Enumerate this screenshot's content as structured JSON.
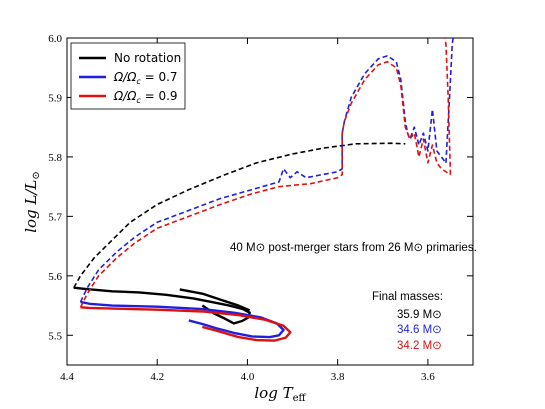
{
  "chart_data": {
    "type": "line",
    "title": "",
    "xlabel": "log T",
    "xlabel_sub": "eff",
    "ylabel": "log L/L",
    "ylabel_sub": "⊙",
    "xlim": [
      4.4,
      3.5
    ],
    "ylim": [
      5.45,
      6.0
    ],
    "x_inverted": true,
    "grid": false,
    "legend_position": "top-left",
    "xticks": [
      "4.4",
      "4.2",
      "4.0",
      "3.8",
      "3.6"
    ],
    "xtick_values": [
      4.4,
      4.2,
      4.0,
      3.8,
      3.6
    ],
    "yticks": [
      "5.5",
      "5.6",
      "5.7",
      "5.8",
      "5.9",
      "6.0"
    ],
    "ytick_values": [
      5.5,
      5.6,
      5.7,
      5.8,
      5.9,
      6.0
    ],
    "series": [
      {
        "name": "No rotation",
        "color": "#000000",
        "ms": [
          [
            4.385,
            5.58
          ],
          [
            4.36,
            5.578
          ],
          [
            4.3,
            5.574
          ],
          [
            4.24,
            5.572
          ],
          [
            4.18,
            5.568
          ],
          [
            4.12,
            5.562
          ],
          [
            4.08,
            5.556
          ],
          [
            4.04,
            5.55
          ],
          [
            4.01,
            5.544
          ],
          [
            3.995,
            5.538
          ],
          [
            3.998,
            5.53
          ],
          [
            4.012,
            5.524
          ],
          [
            4.03,
            5.52
          ],
          [
            4.05,
            5.528
          ],
          [
            4.075,
            5.537
          ],
          [
            4.09,
            5.545
          ],
          [
            4.1,
            5.55
          ]
        ],
        "ms_extra": [
          [
            4.15,
            5.577
          ],
          [
            4.1,
            5.57
          ],
          [
            4.06,
            5.56
          ],
          [
            4.02,
            5.55
          ],
          [
            3.995,
            5.542
          ]
        ],
        "post": [
          [
            4.385,
            5.58
          ],
          [
            4.37,
            5.6
          ],
          [
            4.34,
            5.63
          ],
          [
            4.3,
            5.66
          ],
          [
            4.26,
            5.69
          ],
          [
            4.2,
            5.72
          ],
          [
            4.13,
            5.745
          ],
          [
            4.05,
            5.77
          ],
          [
            3.98,
            5.79
          ],
          [
            3.9,
            5.805
          ],
          [
            3.83,
            5.815
          ],
          [
            3.76,
            5.822
          ],
          [
            3.68,
            5.823
          ],
          [
            3.65,
            5.822
          ]
        ]
      },
      {
        "name": "Ω/Ω_c = 0.7",
        "color": "#1f1fe0",
        "ms": [
          [
            4.37,
            5.556
          ],
          [
            4.35,
            5.553
          ],
          [
            4.3,
            5.55
          ],
          [
            4.2,
            5.548
          ],
          [
            4.1,
            5.544
          ],
          [
            4.03,
            5.538
          ],
          [
            3.97,
            5.53
          ],
          [
            3.935,
            5.52
          ],
          [
            3.92,
            5.509
          ],
          [
            3.93,
            5.5
          ],
          [
            3.95,
            5.497
          ],
          [
            3.99,
            5.498
          ],
          [
            4.03,
            5.504
          ],
          [
            4.07,
            5.512
          ],
          [
            4.1,
            5.519
          ],
          [
            4.13,
            5.525
          ]
        ],
        "post": [
          [
            4.37,
            5.556
          ],
          [
            4.355,
            5.58
          ],
          [
            4.33,
            5.61
          ],
          [
            4.29,
            5.64
          ],
          [
            4.25,
            5.665
          ],
          [
            4.2,
            5.69
          ],
          [
            4.13,
            5.71
          ],
          [
            4.06,
            5.73
          ],
          [
            3.99,
            5.745
          ],
          [
            3.93,
            5.758
          ],
          [
            3.92,
            5.78
          ],
          [
            3.905,
            5.765
          ],
          [
            3.89,
            5.775
          ],
          [
            3.87,
            5.765
          ],
          [
            3.85,
            5.768
          ],
          [
            3.8,
            5.775
          ],
          [
            3.79,
            5.78
          ],
          [
            3.79,
            5.84
          ],
          [
            3.785,
            5.86
          ],
          [
            3.77,
            5.9
          ],
          [
            3.74,
            5.94
          ],
          [
            3.71,
            5.965
          ],
          [
            3.69,
            5.97
          ],
          [
            3.67,
            5.96
          ],
          [
            3.66,
            5.93
          ],
          [
            3.65,
            5.86
          ],
          [
            3.645,
            5.84
          ],
          [
            3.64,
            5.83
          ],
          [
            3.63,
            5.85
          ],
          [
            3.62,
            5.82
          ],
          [
            3.61,
            5.84
          ],
          [
            3.6,
            5.81
          ],
          [
            3.59,
            5.88
          ],
          [
            3.58,
            5.81
          ],
          [
            3.57,
            5.8
          ],
          [
            3.56,
            5.79
          ]
        ],
        "post_extra": [
          [
            3.56,
            5.79
          ],
          [
            3.552,
            5.9
          ],
          [
            3.546,
            5.99
          ],
          [
            3.544,
            6.0
          ]
        ]
      },
      {
        "name": "Ω/Ω_c = 0.9",
        "color": "#e01010",
        "ms": [
          [
            4.37,
            5.547
          ],
          [
            4.35,
            5.546
          ],
          [
            4.3,
            5.545
          ],
          [
            4.2,
            5.543
          ],
          [
            4.1,
            5.54
          ],
          [
            4.02,
            5.534
          ],
          [
            3.96,
            5.526
          ],
          [
            3.92,
            5.516
          ],
          [
            3.905,
            5.505
          ],
          [
            3.915,
            5.496
          ],
          [
            3.94,
            5.491
          ],
          [
            3.98,
            5.492
          ],
          [
            4.02,
            5.497
          ],
          [
            4.07,
            5.508
          ],
          [
            4.1,
            5.514
          ]
        ],
        "post": [
          [
            4.37,
            5.547
          ],
          [
            4.355,
            5.57
          ],
          [
            4.33,
            5.6
          ],
          [
            4.29,
            5.63
          ],
          [
            4.25,
            5.655
          ],
          [
            4.2,
            5.68
          ],
          [
            4.13,
            5.7
          ],
          [
            4.06,
            5.72
          ],
          [
            3.99,
            5.738
          ],
          [
            3.93,
            5.75
          ],
          [
            3.86,
            5.755
          ],
          [
            3.8,
            5.765
          ],
          [
            3.79,
            5.77
          ],
          [
            3.79,
            5.84
          ],
          [
            3.785,
            5.86
          ],
          [
            3.77,
            5.89
          ],
          [
            3.74,
            5.93
          ],
          [
            3.71,
            5.955
          ],
          [
            3.69,
            5.96
          ],
          [
            3.67,
            5.95
          ],
          [
            3.66,
            5.92
          ],
          [
            3.65,
            5.85
          ],
          [
            3.64,
            5.83
          ],
          [
            3.63,
            5.84
          ],
          [
            3.62,
            5.8
          ],
          [
            3.61,
            5.83
          ],
          [
            3.6,
            5.79
          ],
          [
            3.59,
            5.82
          ],
          [
            3.58,
            5.79
          ],
          [
            3.57,
            5.78
          ],
          [
            3.55,
            5.77
          ]
        ],
        "post_extra": [
          [
            3.55,
            5.77
          ],
          [
            3.555,
            5.9
          ],
          [
            3.56,
            5.99
          ],
          [
            3.562,
            6.0
          ]
        ]
      }
    ],
    "legend": [
      {
        "label": "No rotation",
        "color": "#000000"
      },
      {
        "label": "Ω/Ω",
        "sub": "c",
        "tail": " = 0.7",
        "color": "#1f1fe0"
      },
      {
        "label": "Ω/Ω",
        "sub": "c",
        "tail": " = 0.9",
        "color": "#e01010"
      }
    ],
    "annotation": "40 M⊙ post-merger stars from 26 M⊙ primaries.",
    "final_masses": {
      "title": "Final masses:",
      "values": [
        {
          "text": "35.9 M⊙",
          "color": "#000000"
        },
        {
          "text": "34.6 M⊙",
          "color": "#1f1fe0"
        },
        {
          "text": "34.2 M⊙",
          "color": "#e01010"
        }
      ]
    }
  }
}
